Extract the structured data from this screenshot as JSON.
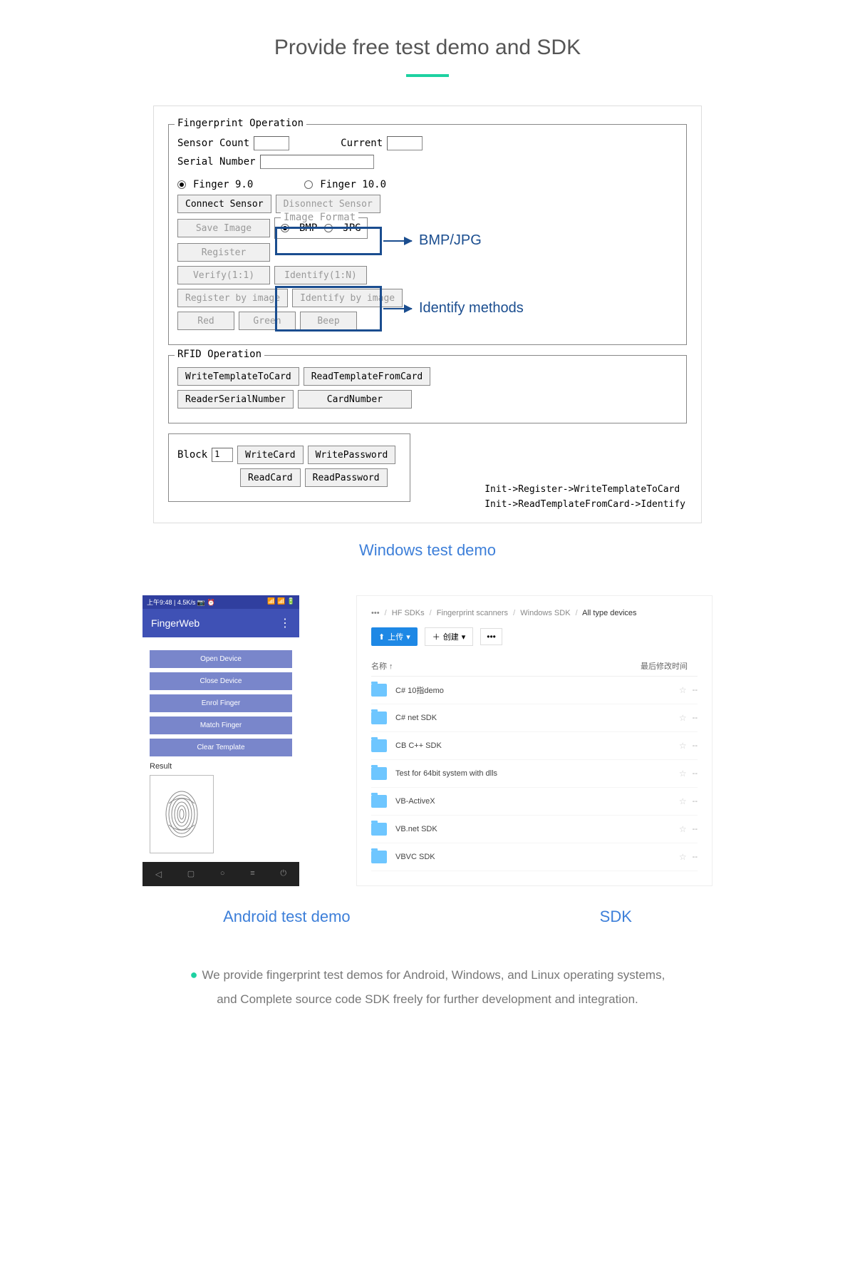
{
  "page": {
    "title": "Provide free test demo and SDK",
    "accent_color": "#1dd1a1",
    "callout_color": "#1a4d8f"
  },
  "windows_demo": {
    "fieldset1_title": "Fingerprint Operation",
    "sensor_count_label": "Sensor Count",
    "current_label": "Current",
    "serial_label": "Serial Number",
    "radio1": "Finger 9.0",
    "radio2": "Finger 10.0",
    "connect": "Connect Sensor",
    "disconnect": "Disonnect Sensor",
    "save_image": "Save Image",
    "image_format_legend": "Image Format",
    "bmp": "BMP",
    "jpg": "JPG",
    "register": "Register",
    "verify": "Verify(1:1)",
    "identify": "Identify(1:N)",
    "register_by_image": "Register by image",
    "identify_by_image": "Identify by image",
    "red": "Red",
    "green": "Green",
    "beep": "Beep",
    "fieldset2_title": "RFID Operation",
    "write_template": "WriteTemplateToCard",
    "read_template": "ReadTemplateFromCard",
    "reader_serial": "ReaderSerialNumber",
    "card_number": "CardNumber",
    "block_label": "Block",
    "block_value": "1",
    "write_card": "WriteCard",
    "write_password": "WritePassword",
    "read_card": "ReadCard",
    "read_password": "ReadPassword",
    "callout1": "BMP/JPG",
    "callout2": "Identify methods",
    "flow1": "Init->Register->WriteTemplateToCard",
    "flow2": "Init->ReadTemplateFromCard->Identify",
    "section_label": "Windows test demo"
  },
  "android": {
    "status_left": "上午9:48 | 4.5K/s 📷 ⏰",
    "status_right": "📶 📶 🔋",
    "app_title": "FingerWeb",
    "btn_open": "Open Device",
    "btn_close": "Close Device",
    "btn_enrol": "Enrol Finger",
    "btn_match": "Match Finger",
    "btn_clear": "Clear Template",
    "result_label": "Result",
    "section_label": "Android test demo"
  },
  "sdk": {
    "bc_dots": "•••",
    "bc1": "HF SDKs",
    "bc2": "Fingerprint scanners",
    "bc3": "Windows SDK",
    "bc4": "All type devices",
    "upload_label": "上传",
    "new_label": "创建",
    "col_name": "名称 ↑",
    "col_time": "最后修改时间",
    "files": [
      "C# 10指demo",
      "C# net SDK",
      "CB C++ SDK",
      "Test for 64bit system with dlls",
      "VB-ActiveX",
      "VB.net SDK",
      "VBVC SDK"
    ],
    "section_label": "SDK"
  },
  "footer": {
    "line1": "We provide fingerprint test demos for Android, Windows, and Linux operating systems,",
    "line2": "and Complete source code SDK freely for further development and integration."
  }
}
